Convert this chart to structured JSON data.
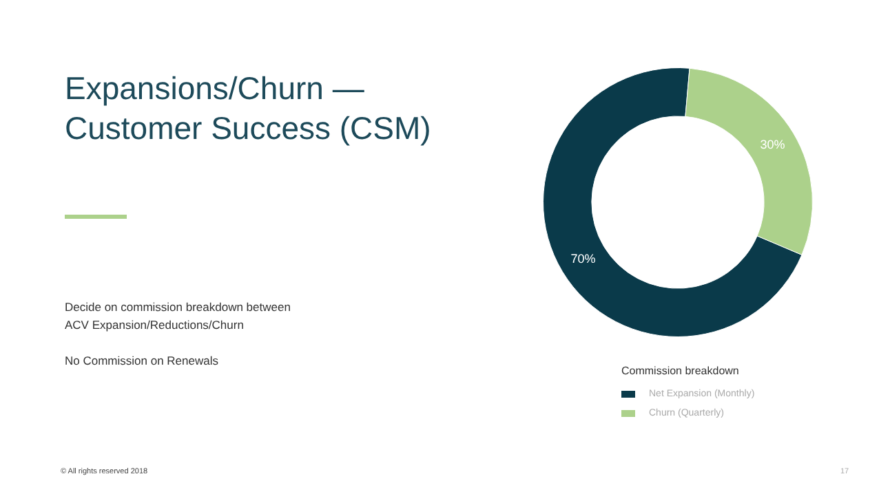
{
  "chart_data": {
    "type": "donut",
    "title": "Expansions/Churn —\nCustomer Success (CSM)",
    "categories": [
      "Net Expansion (Monthly)",
      "Churn (Quarterly)"
    ],
    "values": [
      70,
      30
    ],
    "colors": [
      "#0a3a4a",
      "#acd18b"
    ],
    "value_labels": [
      "70%",
      "30%"
    ],
    "legend_title": "Commission breakdown",
    "legend": "bottom",
    "annotations": [
      "Decide on commission breakdown between\nACV Expansion/Reductions/Churn",
      "No Commission on Renewals",
      "© All rights reserved 2018",
      "17"
    ]
  }
}
